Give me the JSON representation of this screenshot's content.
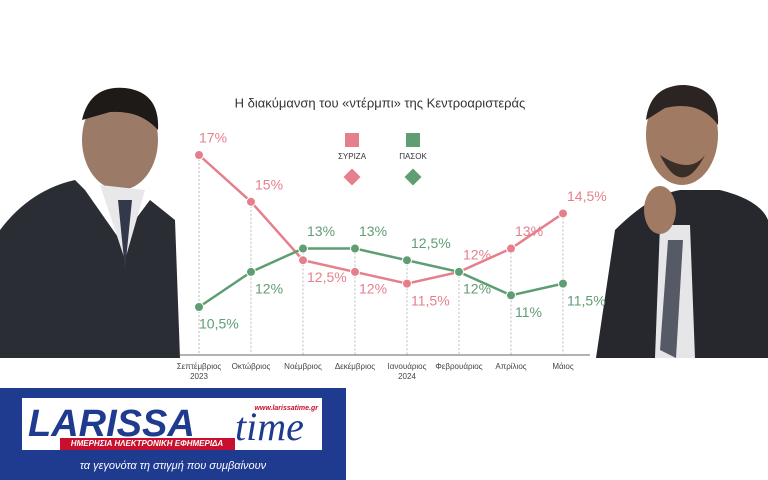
{
  "chart_data": {
    "type": "line",
    "title": "Η διακύμανση του «ντέρμπι» της Κεντροαριστεράς",
    "categories": [
      "Σεπτέμβριος 2023",
      "Οκτώβριος",
      "Νοέμβριος",
      "Δεκέμβριος",
      "Ιανουάριος 2024",
      "Φεβρουάριος",
      "Απρίλιος",
      "Μάιος"
    ],
    "series": [
      {
        "name": "ΣΥΡΙΖΑ",
        "color": "#e67f8c",
        "values": [
          17,
          15,
          12.5,
          12,
          11.5,
          12,
          13,
          14.5
        ],
        "value_labels": [
          "17%",
          "15%",
          "12,5%",
          "12%",
          "11,5%",
          "12%",
          "13%",
          "14,5%"
        ]
      },
      {
        "name": "ΠΑΣΟΚ",
        "color": "#5f9d73",
        "values": [
          10.5,
          12,
          13,
          13,
          12.5,
          12,
          11,
          11.5
        ],
        "value_labels": [
          "10,5%",
          "12%",
          "13%",
          "13%",
          "12,5%",
          "12%",
          "11%",
          "11,5%"
        ]
      }
    ]
  },
  "logo": {
    "brand_left": "LARISSA",
    "brand_right": "time",
    "url": "www.larissatime.gr",
    "tagline": "ΗΜΕΡΗΣΙΑ ΗΛΕΚΤΡΟΝΙΚΗ ΕΦΗΜΕΡΙΔΑ",
    "slogan": "τα γεγονότα τη στιγμή που συμβαίνουν"
  }
}
